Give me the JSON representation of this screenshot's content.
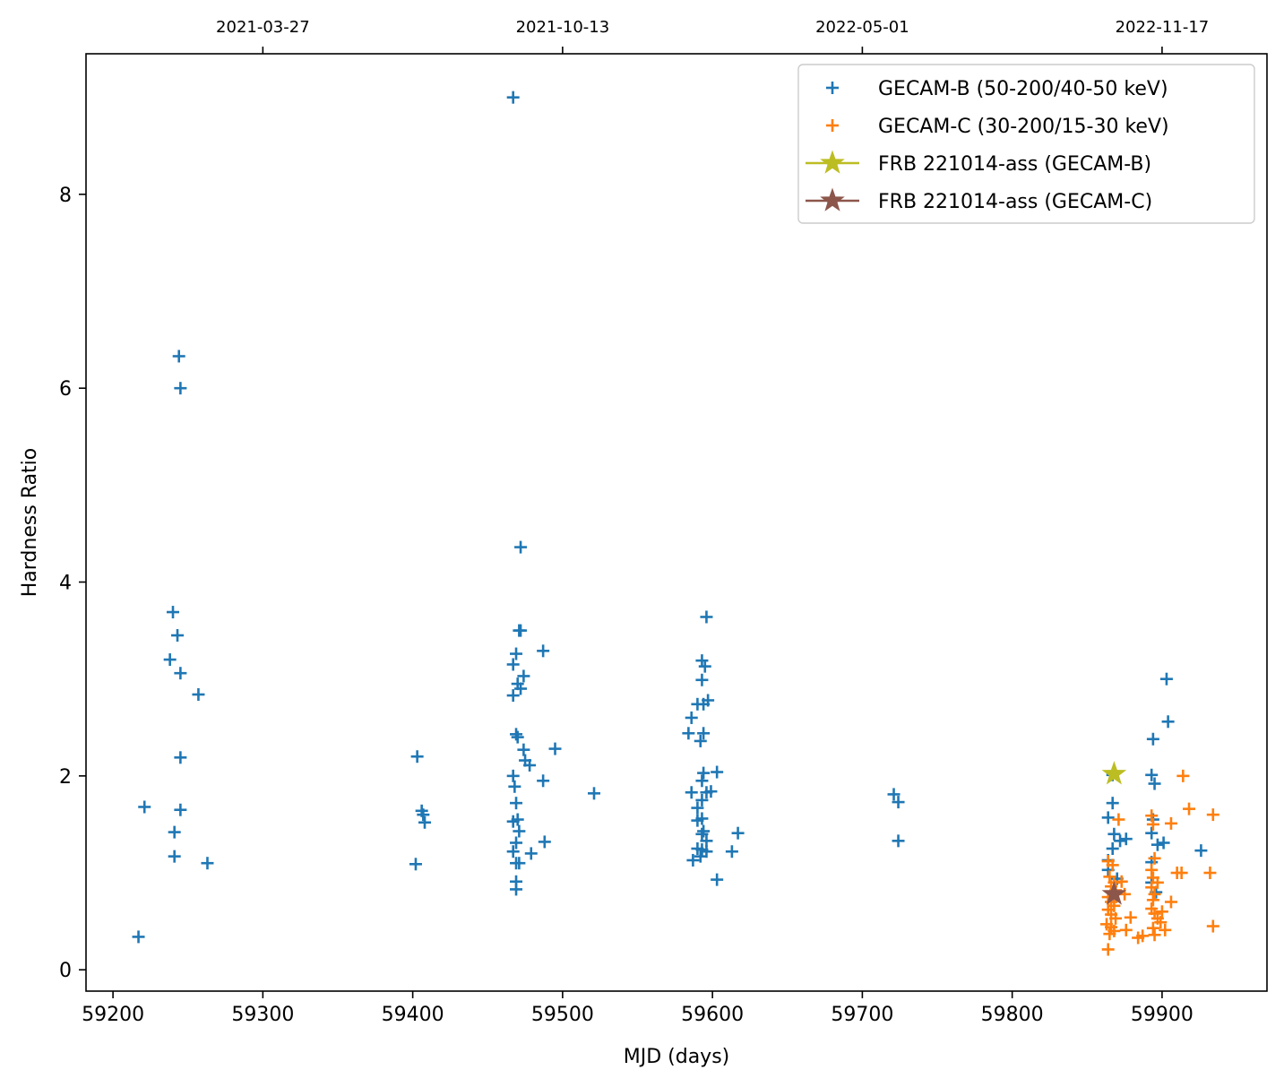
{
  "chart_data": {
    "type": "scatter",
    "title": "",
    "xlabel": "MJD (days)",
    "ylabel": "Hardness Ratio",
    "xlim": [
      59182,
      59970
    ],
    "ylim": [
      -0.22,
      9.45
    ],
    "xticks": [
      59200,
      59300,
      59400,
      59500,
      59600,
      59700,
      59800,
      59900
    ],
    "yticks": [
      0,
      2,
      4,
      6,
      8
    ],
    "top_axis": {
      "ticks": [
        {
          "mjd": 59300,
          "label": "2021-03-27"
        },
        {
          "mjd": 59500,
          "label": "2021-10-13"
        },
        {
          "mjd": 59700,
          "label": "2022-05-01"
        },
        {
          "mjd": 59900,
          "label": "2022-11-17"
        }
      ]
    },
    "legend_position": "top-right",
    "colors": {
      "gecam_b": "#1f77b4",
      "gecam_c": "#ff7f0e",
      "frb_b": "#bcbd22",
      "frb_c": "#8c564b"
    },
    "series": [
      {
        "name": "GECAM-B (50-200/40-50 keV)",
        "marker": "plus",
        "color": "#1f77b4",
        "points": [
          [
            59217,
            0.34
          ],
          [
            59221,
            1.68
          ],
          [
            59240,
            3.69
          ],
          [
            59238,
            3.2
          ],
          [
            59243,
            3.45
          ],
          [
            59245,
            3.06
          ],
          [
            59241,
            1.42
          ],
          [
            59241,
            1.17
          ],
          [
            59245,
            1.65
          ],
          [
            59245,
            2.19
          ],
          [
            59244,
            6.33
          ],
          [
            59245,
            6.0
          ],
          [
            59257,
            2.84
          ],
          [
            59263,
            1.1
          ],
          [
            59403,
            2.2
          ],
          [
            59402,
            1.09
          ],
          [
            59406,
            1.64
          ],
          [
            59407,
            1.6
          ],
          [
            59408,
            1.52
          ],
          [
            59467,
            9.0
          ],
          [
            59472,
            4.36
          ],
          [
            59471,
            3.5
          ],
          [
            59472,
            3.5
          ],
          [
            59469,
            3.26
          ],
          [
            59467,
            3.15
          ],
          [
            59470,
            2.95
          ],
          [
            59472,
            2.9
          ],
          [
            59474,
            3.03
          ],
          [
            59467,
            2.83
          ],
          [
            59469,
            2.43
          ],
          [
            59470,
            2.4
          ],
          [
            59474,
            2.27
          ],
          [
            59475,
            2.16
          ],
          [
            59478,
            2.11
          ],
          [
            59467,
            2.0
          ],
          [
            59468,
            1.89
          ],
          [
            59469,
            1.72
          ],
          [
            59470,
            1.55
          ],
          [
            59467,
            1.53
          ],
          [
            59471,
            1.43
          ],
          [
            59469,
            1.31
          ],
          [
            59467,
            1.22
          ],
          [
            59469,
            1.1
          ],
          [
            59471,
            1.1
          ],
          [
            59469,
            0.91
          ],
          [
            59469,
            0.83
          ],
          [
            59479,
            1.2
          ],
          [
            59487,
            3.29
          ],
          [
            59487,
            1.95
          ],
          [
            59488,
            1.32
          ],
          [
            59495,
            2.28
          ],
          [
            59521,
            1.82
          ],
          [
            59596,
            3.64
          ],
          [
            59593,
            3.19
          ],
          [
            59595,
            3.13
          ],
          [
            59593,
            2.99
          ],
          [
            59597,
            2.78
          ],
          [
            59590,
            2.74
          ],
          [
            59594,
            2.74
          ],
          [
            59586,
            2.6
          ],
          [
            59584,
            2.44
          ],
          [
            59594,
            2.44
          ],
          [
            59592,
            2.36
          ],
          [
            59594,
            2.03
          ],
          [
            59603,
            2.04
          ],
          [
            59593,
            1.95
          ],
          [
            59586,
            1.83
          ],
          [
            59596,
            1.83
          ],
          [
            59599,
            1.84
          ],
          [
            59593,
            1.75
          ],
          [
            59590,
            1.67
          ],
          [
            59593,
            1.56
          ],
          [
            59590,
            1.54
          ],
          [
            59594,
            1.43
          ],
          [
            59593,
            1.4
          ],
          [
            59596,
            1.33
          ],
          [
            59590,
            1.25
          ],
          [
            59593,
            1.24
          ],
          [
            59596,
            1.22
          ],
          [
            59587,
            1.13
          ],
          [
            59592,
            1.17
          ],
          [
            59617,
            1.41
          ],
          [
            59613,
            1.22
          ],
          [
            59603,
            0.93
          ],
          [
            59721,
            1.81
          ],
          [
            59724,
            1.73
          ],
          [
            59724,
            1.33
          ],
          [
            59867,
            2.01
          ],
          [
            59867,
            1.72
          ],
          [
            59864,
            1.57
          ],
          [
            59868,
            1.4
          ],
          [
            59867,
            1.25
          ],
          [
            59864,
            1.13
          ],
          [
            59872,
            1.33
          ],
          [
            59876,
            1.35
          ],
          [
            59864,
            1.03
          ],
          [
            59870,
            0.94
          ],
          [
            59893,
            2.01
          ],
          [
            59895,
            1.92
          ],
          [
            59894,
            2.38
          ],
          [
            59904,
            2.56
          ],
          [
            59903,
            3.0
          ],
          [
            59894,
            1.55
          ],
          [
            59893,
            1.41
          ],
          [
            59897,
            1.29
          ],
          [
            59893,
            1.11
          ],
          [
            59901,
            1.31
          ],
          [
            59926,
            1.23
          ],
          [
            59893,
            0.9
          ],
          [
            59896,
            0.8
          ]
        ]
      },
      {
        "name": "GECAM-C (30-200/15-30 keV)",
        "marker": "plus",
        "color": "#ff7f0e",
        "points": [
          [
            59864,
            1.12
          ],
          [
            59867,
            1.08
          ],
          [
            59865,
            0.96
          ],
          [
            59868,
            0.9
          ],
          [
            59866,
            0.86
          ],
          [
            59869,
            0.82
          ],
          [
            59864,
            0.75
          ],
          [
            59866,
            0.7
          ],
          [
            59868,
            0.66
          ],
          [
            59864,
            0.62
          ],
          [
            59866,
            0.57
          ],
          [
            59869,
            0.53
          ],
          [
            59863,
            0.47
          ],
          [
            59866,
            0.44
          ],
          [
            59868,
            0.4
          ],
          [
            59865,
            0.37
          ],
          [
            59864,
            0.21
          ],
          [
            59871,
            1.55
          ],
          [
            59873,
            0.91
          ],
          [
            59875,
            0.78
          ],
          [
            59876,
            0.41
          ],
          [
            59879,
            0.54
          ],
          [
            59884,
            0.33
          ],
          [
            59887,
            0.35
          ],
          [
            59893,
            1.59
          ],
          [
            59894,
            1.5
          ],
          [
            59895,
            1.15
          ],
          [
            59893,
            1.03
          ],
          [
            59894,
            0.95
          ],
          [
            59893,
            0.85
          ],
          [
            59895,
            0.78
          ],
          [
            59894,
            0.72
          ],
          [
            59893,
            0.63
          ],
          [
            59895,
            0.58
          ],
          [
            59897,
            0.53
          ],
          [
            59899,
            0.49
          ],
          [
            59894,
            0.43
          ],
          [
            59895,
            0.36
          ],
          [
            59897,
            0.9
          ],
          [
            59900,
            0.6
          ],
          [
            59902,
            0.41
          ],
          [
            59906,
            1.51
          ],
          [
            59906,
            0.7
          ],
          [
            59910,
            1.0
          ],
          [
            59913,
            1.0
          ],
          [
            59914,
            2.0
          ],
          [
            59918,
            1.66
          ],
          [
            59932,
            1.0
          ],
          [
            59934,
            1.6
          ],
          [
            59934,
            0.45
          ]
        ]
      },
      {
        "name": "FRB 221014-ass (GECAM-B)",
        "marker": "star",
        "color": "#bcbd22",
        "points": [
          [
            59868,
            2.02
          ]
        ]
      },
      {
        "name": "FRB 221014-ass (GECAM-C)",
        "marker": "star",
        "color": "#8c564b",
        "points": [
          [
            59868,
            0.78
          ]
        ]
      }
    ]
  }
}
